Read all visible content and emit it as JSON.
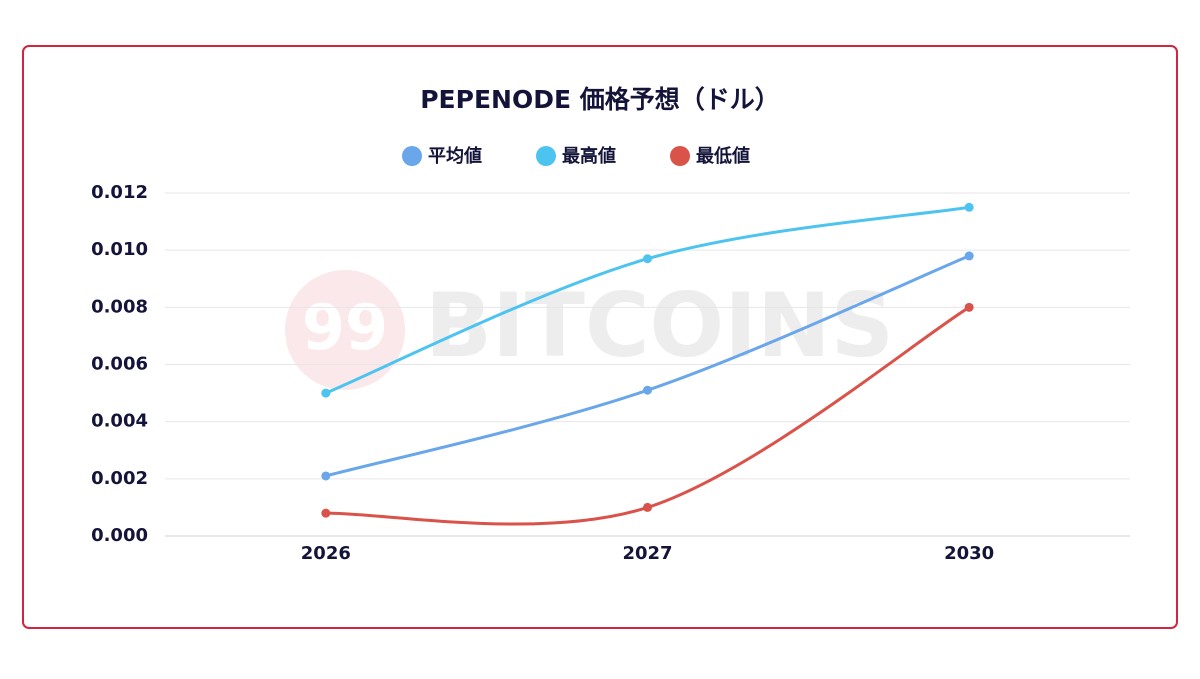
{
  "chart_data": {
    "type": "line",
    "title": "PEPENODE 価格予想（ドル）",
    "watermark": {
      "logo": "99",
      "text": "BITCOINS"
    },
    "categories": [
      "2026",
      "2027",
      "2030"
    ],
    "series": [
      {
        "name": "平均値",
        "color": "#6aa6ea",
        "values": [
          0.0021,
          0.0051,
          0.0098
        ]
      },
      {
        "name": "最高値",
        "color": "#4dc3f0",
        "values": [
          0.005,
          0.0097,
          0.0115
        ]
      },
      {
        "name": "最低値",
        "color": "#d9534a",
        "values": [
          0.0008,
          0.001,
          0.008
        ]
      }
    ],
    "ylim": [
      0,
      0.012
    ],
    "yticks": [
      {
        "value": 0,
        "label": "0.000"
      },
      0.002,
      0.004,
      0.006,
      0.008,
      {
        "value": 0.01,
        "label": "0.010"
      },
      0.012
    ],
    "grid": true,
    "legend": "top",
    "smooth": true
  }
}
